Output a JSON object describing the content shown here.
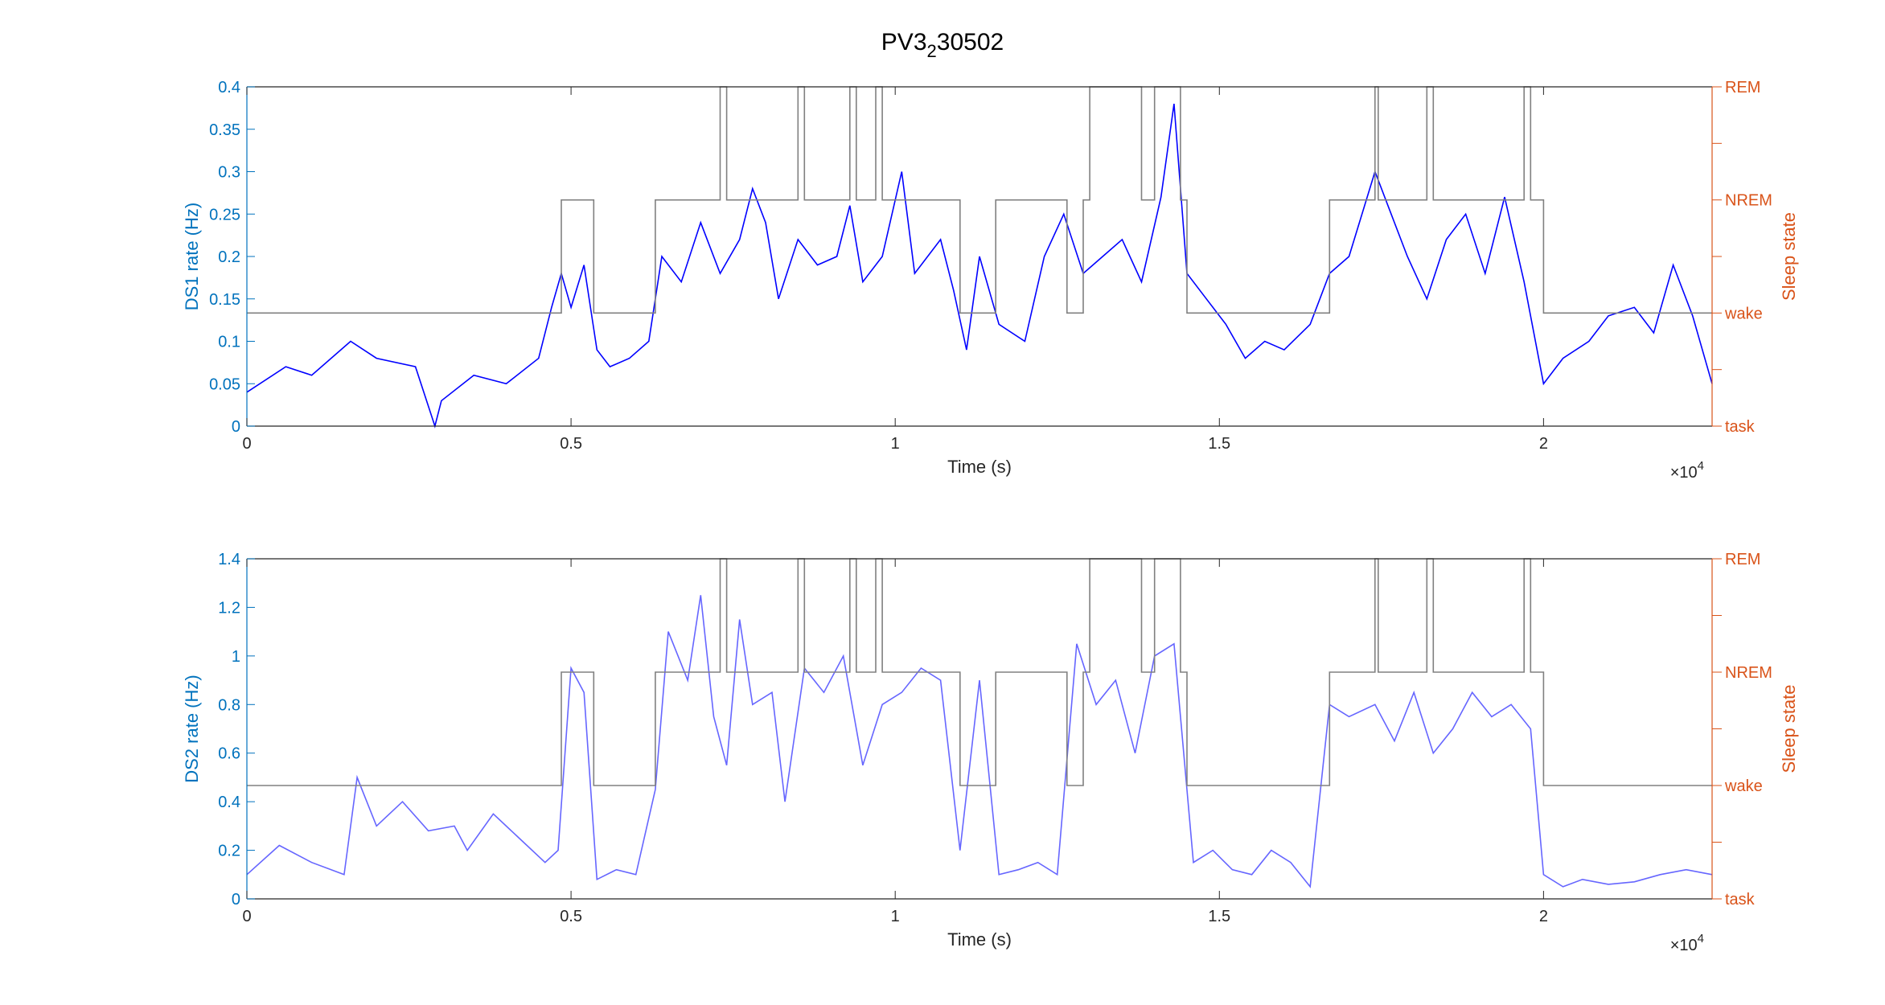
{
  "title": {
    "base": "PV3",
    "sub": "2",
    "rest": "30502"
  },
  "colors": {
    "left_axis": "#0072BD",
    "right_axis": "#D95319",
    "ds1_line": "#0000FF",
    "ds2_line": "#6666FF",
    "state_line": "#808080",
    "frame": "#262626"
  },
  "chart_data": [
    {
      "type": "line",
      "xlabel": "Time (s)",
      "ylabel": "DS1 rate (Hz)",
      "ylabel_right": "Sleep state",
      "xlim": [
        0,
        22600
      ],
      "ylim": [
        0,
        0.4
      ],
      "x_ticks": [
        0,
        5000,
        10000,
        15000,
        20000
      ],
      "x_tick_labels": [
        "0",
        "0.5",
        "1",
        "1.5",
        "2"
      ],
      "x_exponent": {
        "base": "×10",
        "power": "4"
      },
      "y_ticks": [
        0,
        0.05,
        0.1,
        0.15,
        0.2,
        0.25,
        0.3,
        0.35,
        0.4
      ],
      "y_tick_labels": [
        "0",
        "0.05",
        "0.1",
        "0.15",
        "0.2",
        "0.25",
        "0.3",
        "0.35",
        "0.4"
      ],
      "right_ticks": [
        {
          "value": 0,
          "label": "task"
        },
        {
          "value": 0.5,
          "label": ""
        },
        {
          "value": 1,
          "label": "wake"
        },
        {
          "value": 1.5,
          "label": ""
        },
        {
          "value": 2,
          "label": "NREM"
        },
        {
          "value": 2.5,
          "label": ""
        },
        {
          "value": 3,
          "label": "REM"
        }
      ],
      "right_ylim": [
        0,
        3
      ],
      "series": [
        {
          "role": "rate",
          "x": [
            0,
            600,
            1000,
            1600,
            2000,
            2600,
            2900,
            3000,
            3500,
            4000,
            4500,
            4700,
            4850,
            5000,
            5200,
            5400,
            5600,
            5900,
            6200,
            6400,
            6700,
            7000,
            7300,
            7600,
            7800,
            8000,
            8200,
            8500,
            8800,
            9100,
            9300,
            9500,
            9800,
            10100,
            10300,
            10500,
            10700,
            10900,
            11100,
            11300,
            11600,
            12000,
            12300,
            12600,
            12900,
            13200,
            13500,
            13800,
            14100,
            14300,
            14500,
            14800,
            15100,
            15400,
            15700,
            16000,
            16400,
            16700,
            17000,
            17400,
            17600,
            17900,
            18200,
            18500,
            18800,
            19100,
            19400,
            19700,
            20000,
            20300,
            20700,
            21000,
            21400,
            21700,
            22000,
            22300,
            22600
          ],
          "values": [
            0.04,
            0.07,
            0.06,
            0.1,
            0.08,
            0.07,
            0.0,
            0.03,
            0.06,
            0.05,
            0.08,
            0.14,
            0.18,
            0.14,
            0.19,
            0.09,
            0.07,
            0.08,
            0.1,
            0.2,
            0.17,
            0.24,
            0.18,
            0.22,
            0.28,
            0.24,
            0.15,
            0.22,
            0.19,
            0.2,
            0.26,
            0.17,
            0.2,
            0.3,
            0.18,
            0.2,
            0.22,
            0.16,
            0.09,
            0.2,
            0.12,
            0.1,
            0.2,
            0.25,
            0.18,
            0.2,
            0.22,
            0.17,
            0.27,
            0.38,
            0.18,
            0.15,
            0.12,
            0.08,
            0.1,
            0.09,
            0.12,
            0.18,
            0.2,
            0.3,
            0.26,
            0.2,
            0.15,
            0.22,
            0.25,
            0.18,
            0.27,
            0.17,
            0.05,
            0.08,
            0.1,
            0.13,
            0.14,
            0.11,
            0.19,
            0.13,
            0.05
          ]
        },
        {
          "role": "state",
          "axis": "right",
          "x": [
            0,
            4500,
            4850,
            5200,
            5350,
            6300,
            7300,
            7400,
            8200,
            8500,
            8600,
            9300,
            9400,
            9700,
            9800,
            10900,
            11000,
            11550,
            12300,
            12650,
            12900,
            13000,
            13800,
            14000,
            14400,
            14500,
            16500,
            16700,
            17400,
            17450,
            17600,
            18200,
            18300,
            19200,
            19700,
            19800,
            20000,
            22600
          ],
          "values": [
            1,
            1,
            2,
            2,
            1,
            2,
            3,
            2,
            2,
            3,
            2,
            3,
            2,
            3,
            2,
            2,
            1,
            2,
            2,
            1,
            2,
            3,
            2,
            3,
            2,
            1,
            1,
            2,
            3,
            2,
            2,
            3,
            2,
            2,
            3,
            2,
            1,
            1
          ]
        }
      ]
    },
    {
      "type": "line",
      "xlabel": "Time (s)",
      "ylabel": "DS2 rate (Hz)",
      "ylabel_right": "Sleep state",
      "xlim": [
        0,
        22600
      ],
      "ylim": [
        0,
        1.4
      ],
      "x_ticks": [
        0,
        5000,
        10000,
        15000,
        20000
      ],
      "x_tick_labels": [
        "0",
        "0.5",
        "1",
        "1.5",
        "2"
      ],
      "x_exponent": {
        "base": "×10",
        "power": "4"
      },
      "y_ticks": [
        0,
        0.2,
        0.4,
        0.6,
        0.8,
        1,
        1.2,
        1.4
      ],
      "y_tick_labels": [
        "0",
        "0.2",
        "0.4",
        "0.6",
        "0.8",
        "1",
        "1.2",
        "1.4"
      ],
      "right_ticks": [
        {
          "value": 0,
          "label": "task"
        },
        {
          "value": 0.5,
          "label": ""
        },
        {
          "value": 1,
          "label": "wake"
        },
        {
          "value": 1.5,
          "label": ""
        },
        {
          "value": 2,
          "label": "NREM"
        },
        {
          "value": 2.5,
          "label": ""
        },
        {
          "value": 3,
          "label": "REM"
        }
      ],
      "right_ylim": [
        0,
        3
      ],
      "series": [
        {
          "role": "rate",
          "x": [
            0,
            500,
            1000,
            1500,
            1700,
            2000,
            2400,
            2800,
            3200,
            3400,
            3800,
            4200,
            4600,
            4800,
            5000,
            5200,
            5400,
            5700,
            6000,
            6300,
            6500,
            6800,
            7000,
            7200,
            7400,
            7600,
            7800,
            8100,
            8300,
            8600,
            8900,
            9200,
            9500,
            9800,
            10100,
            10400,
            10700,
            11000,
            11300,
            11600,
            11900,
            12200,
            12500,
            12800,
            13100,
            13400,
            13700,
            14000,
            14300,
            14600,
            14900,
            15200,
            15500,
            15800,
            16100,
            16400,
            16700,
            17000,
            17400,
            17700,
            18000,
            18300,
            18600,
            18900,
            19200,
            19500,
            19800,
            20000,
            20300,
            20600,
            21000,
            21400,
            21800,
            22200,
            22600
          ],
          "values": [
            0.1,
            0.22,
            0.15,
            0.1,
            0.5,
            0.3,
            0.4,
            0.28,
            0.3,
            0.2,
            0.35,
            0.25,
            0.15,
            0.2,
            0.95,
            0.85,
            0.08,
            0.12,
            0.1,
            0.45,
            1.1,
            0.9,
            1.25,
            0.75,
            0.55,
            1.15,
            0.8,
            0.85,
            0.4,
            0.95,
            0.85,
            1.0,
            0.55,
            0.8,
            0.85,
            0.95,
            0.9,
            0.2,
            0.9,
            0.1,
            0.12,
            0.15,
            0.1,
            1.05,
            0.8,
            0.9,
            0.6,
            1.0,
            1.05,
            0.15,
            0.2,
            0.12,
            0.1,
            0.2,
            0.15,
            0.05,
            0.8,
            0.75,
            0.8,
            0.65,
            0.85,
            0.6,
            0.7,
            0.85,
            0.75,
            0.8,
            0.7,
            0.1,
            0.05,
            0.08,
            0.06,
            0.07,
            0.1,
            0.12,
            0.1
          ]
        },
        {
          "role": "state",
          "axis": "right",
          "x": [
            0,
            4500,
            4850,
            5200,
            5350,
            6300,
            7300,
            7400,
            8200,
            8500,
            8600,
            9300,
            9400,
            9700,
            9800,
            10900,
            11000,
            11550,
            12300,
            12650,
            12900,
            13000,
            13800,
            14000,
            14400,
            14500,
            16500,
            16700,
            17400,
            17450,
            17600,
            18200,
            18300,
            19200,
            19700,
            19800,
            20000,
            22600
          ],
          "values": [
            1,
            1,
            2,
            2,
            1,
            2,
            3,
            2,
            2,
            3,
            2,
            3,
            2,
            3,
            2,
            2,
            1,
            2,
            2,
            1,
            2,
            3,
            2,
            3,
            2,
            1,
            1,
            2,
            3,
            2,
            2,
            3,
            2,
            2,
            3,
            2,
            1,
            1
          ]
        }
      ]
    }
  ]
}
